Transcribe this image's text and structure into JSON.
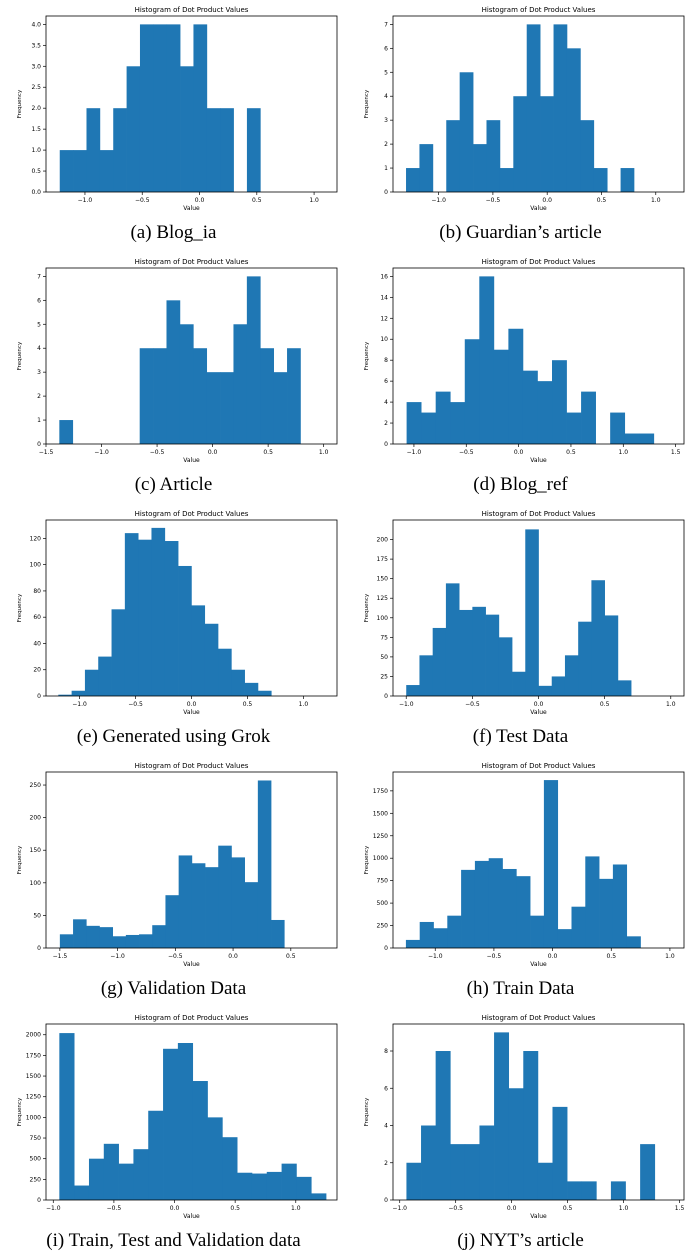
{
  "colors": {
    "bar": "#1f77b4",
    "axis": "#000000"
  },
  "chart_data": [
    {
      "caption": "(a) Blog_ia",
      "type": "bar",
      "title": "Histogram of Dot Product Values",
      "xlabel": "Value",
      "ylabel": "Frequency",
      "xlim": [
        -1.34,
        1.2
      ],
      "ylim": [
        0,
        4.2
      ],
      "xticks": [
        -1.0,
        -0.5,
        0.0,
        0.5,
        1.0
      ],
      "xtick_labels": [
        "−1.0",
        "−0.5",
        "0.0",
        "0.5",
        "1.0"
      ],
      "yticks": [
        0,
        0.5,
        1,
        1.5,
        2,
        2.5,
        3,
        3.5,
        4
      ],
      "ytick_labels": [
        "0.0",
        "0.5",
        "1.0",
        "1.5",
        "2.0",
        "2.5",
        "3.0",
        "3.5",
        "4.0"
      ],
      "bin_start": -1.22,
      "bin_width": 0.1167,
      "counts": [
        1,
        1,
        2,
        1,
        2,
        3,
        4,
        4,
        4,
        3,
        4,
        2,
        2,
        0,
        2
      ]
    },
    {
      "caption": "(b) Guardian’s article",
      "type": "bar",
      "title": "Histogram of Dot Product Values",
      "xlabel": "Value",
      "ylabel": "Frequency",
      "xlim": [
        -1.42,
        1.26
      ],
      "ylim": [
        0,
        7.35
      ],
      "xticks": [
        -1.0,
        -0.5,
        0.0,
        0.5,
        1.0
      ],
      "xtick_labels": [
        "−1.0",
        "−0.5",
        "0.0",
        "0.5",
        "1.0"
      ],
      "yticks": [
        0,
        1,
        2,
        3,
        4,
        5,
        6,
        7
      ],
      "ytick_labels": [
        "0",
        "1",
        "2",
        "3",
        "4",
        "5",
        "6",
        "7"
      ],
      "bin_start": -1.3,
      "bin_width": 0.1235,
      "counts": [
        1,
        2,
        0,
        3,
        5,
        2,
        3,
        1,
        4,
        7,
        4,
        7,
        6,
        3,
        1,
        0,
        1
      ]
    },
    {
      "caption": "(c) Article",
      "type": "bar",
      "title": "Histogram of Dot Product Values",
      "xlabel": "Value",
      "ylabel": "Frequency",
      "xlim": [
        -1.5,
        1.12
      ],
      "ylim": [
        0,
        7.35
      ],
      "xticks": [
        -1.5,
        -1.0,
        -0.5,
        0.0,
        0.5,
        1.0
      ],
      "xtick_labels": [
        "−1.5",
        "−1.0",
        "−0.5",
        "0.0",
        "0.5",
        "1.0"
      ],
      "yticks": [
        0,
        1,
        2,
        3,
        4,
        5,
        6,
        7
      ],
      "ytick_labels": [
        "0",
        "1",
        "2",
        "3",
        "4",
        "5",
        "6",
        "7"
      ],
      "bin_start": -1.38,
      "bin_width": 0.1206,
      "counts": [
        1,
        0,
        0,
        0,
        0,
        0,
        4,
        4,
        6,
        5,
        4,
        3,
        3,
        5,
        7,
        4,
        3,
        4
      ]
    },
    {
      "caption": "(d) Blog_ref",
      "type": "bar",
      "title": "Histogram of Dot Product Values",
      "xlabel": "Value",
      "ylabel": "Frequency",
      "xlim": [
        -1.2,
        1.58
      ],
      "ylim": [
        0,
        16.8
      ],
      "xticks": [
        -1.0,
        -0.5,
        0.0,
        0.5,
        1.0,
        1.5
      ],
      "xtick_labels": [
        "−1.0",
        "−0.5",
        "0.0",
        "0.5",
        "1.0",
        "1.5"
      ],
      "yticks": [
        0,
        2,
        4,
        6,
        8,
        10,
        12,
        14,
        16
      ],
      "ytick_labels": [
        "0",
        "2",
        "4",
        "6",
        "8",
        "10",
        "12",
        "14",
        "16"
      ],
      "bin_start": -1.07,
      "bin_width": 0.1389,
      "counts": [
        4,
        3,
        5,
        4,
        10,
        16,
        9,
        11,
        7,
        6,
        8,
        3,
        5,
        0,
        3,
        1,
        1,
        0
      ]
    },
    {
      "caption": "(e) Generated using Grok",
      "type": "bar",
      "title": "Histogram of Dot Product Values",
      "xlabel": "Value",
      "ylabel": "Frequency",
      "xlim": [
        -1.3,
        1.3
      ],
      "ylim": [
        0,
        134
      ],
      "xticks": [
        -1.0,
        -0.5,
        0.0,
        0.5,
        1.0
      ],
      "xtick_labels": [
        "−1.0",
        "−0.5",
        "0.0",
        "0.5",
        "1.0"
      ],
      "yticks": [
        0,
        20,
        40,
        60,
        80,
        100,
        120
      ],
      "ytick_labels": [
        "0",
        "20",
        "40",
        "60",
        "80",
        "100",
        "120"
      ],
      "bin_start": -1.19,
      "bin_width": 0.1189,
      "counts": [
        1,
        4,
        20,
        30,
        66,
        124,
        119,
        128,
        118,
        99,
        69,
        55,
        36,
        20,
        10,
        4
      ]
    },
    {
      "caption": "(f) Test Data",
      "type": "bar",
      "title": "Histogram of Dot Product Values",
      "xlabel": "Value",
      "ylabel": "Frequency",
      "xlim": [
        -1.1,
        1.1
      ],
      "ylim": [
        0,
        225
      ],
      "xticks": [
        -1.0,
        -0.5,
        0.0,
        0.5,
        1.0
      ],
      "xtick_labels": [
        "−1.0",
        "−0.5",
        "0.0",
        "0.5",
        "1.0"
      ],
      "yticks": [
        0,
        25,
        50,
        75,
        100,
        125,
        150,
        175,
        200
      ],
      "ytick_labels": [
        "0",
        "25",
        "50",
        "75",
        "100",
        "125",
        "150",
        "175",
        "200"
      ],
      "bin_start": -1.0,
      "bin_width": 0.1,
      "counts": [
        14,
        52,
        87,
        144,
        110,
        114,
        104,
        75,
        31,
        213,
        13,
        25,
        52,
        95,
        148,
        103,
        20
      ]
    },
    {
      "caption": "(g) Validation Data",
      "type": "bar",
      "title": "Histogram of Dot Product Values",
      "xlabel": "Value",
      "ylabel": "Frequency",
      "xlim": [
        -1.62,
        0.9
      ],
      "ylim": [
        0,
        270
      ],
      "xticks": [
        -1.5,
        -1.0,
        -0.5,
        0.0,
        0.5
      ],
      "xtick_labels": [
        "−1.5",
        "−1.0",
        "−0.5",
        "0.0",
        "0.5"
      ],
      "yticks": [
        0,
        50,
        100,
        150,
        200,
        250
      ],
      "ytick_labels": [
        "0",
        "50",
        "100",
        "150",
        "200",
        "250"
      ],
      "bin_start": -1.5,
      "bin_width": 0.1143,
      "counts": [
        21,
        44,
        34,
        32,
        18,
        20,
        21,
        35,
        81,
        142,
        130,
        124,
        157,
        139,
        101,
        257,
        43
      ]
    },
    {
      "caption": "(h) Train Data",
      "type": "bar",
      "title": "Histogram of Dot Product Values",
      "xlabel": "Value",
      "ylabel": "Frequency",
      "xlim": [
        -1.36,
        1.12
      ],
      "ylim": [
        0,
        1960
      ],
      "xticks": [
        -1.0,
        -0.5,
        0.0,
        0.5,
        1.0
      ],
      "xtick_labels": [
        "−1.0",
        "−0.5",
        "0.0",
        "0.5",
        "1.0"
      ],
      "yticks": [
        0,
        250,
        500,
        750,
        1000,
        1250,
        1500,
        1750
      ],
      "ytick_labels": [
        "0",
        "250",
        "500",
        "750",
        "1000",
        "1250",
        "1500",
        "1750"
      ],
      "bin_start": -1.25,
      "bin_width": 0.1176,
      "counts": [
        90,
        290,
        220,
        360,
        870,
        970,
        1000,
        880,
        800,
        360,
        1870,
        210,
        460,
        1020,
        770,
        930,
        130
      ]
    },
    {
      "caption": "(i) Train, Test and Validation data",
      "type": "bar",
      "title": "Histogram of Dot Product Values",
      "xlabel": "Value",
      "ylabel": "Frequency",
      "xlim": [
        -1.06,
        1.34
      ],
      "ylim": [
        0,
        2130
      ],
      "xticks": [
        -1.0,
        -0.5,
        0.0,
        0.5,
        1.0
      ],
      "xtick_labels": [
        "−1.0",
        "−0.5",
        "0.0",
        "0.5",
        "1.0"
      ],
      "yticks": [
        0,
        250,
        500,
        750,
        1000,
        1250,
        1500,
        1750,
        2000
      ],
      "ytick_labels": [
        "0",
        "250",
        "500",
        "750",
        "1000",
        "1250",
        "1500",
        "1750",
        "2000"
      ],
      "bin_start": -0.95,
      "bin_width": 0.1222,
      "counts": [
        2020,
        175,
        500,
        680,
        440,
        615,
        1080,
        1830,
        1900,
        1440,
        1000,
        760,
        330,
        320,
        340,
        440,
        280,
        80
      ]
    },
    {
      "caption": "(j) NYT’s article",
      "type": "bar",
      "title": "Histogram of Dot Product Values",
      "xlabel": "Value",
      "ylabel": "Frequency",
      "xlim": [
        -1.06,
        1.54
      ],
      "ylim": [
        0,
        9.45
      ],
      "xticks": [
        -1.0,
        -0.5,
        0.0,
        0.5,
        1.0,
        1.5
      ],
      "xtick_labels": [
        "−1.0",
        "−0.5",
        "0.0",
        "0.5",
        "1.0",
        "1.5"
      ],
      "yticks": [
        0,
        2,
        4,
        6,
        8
      ],
      "ytick_labels": [
        "0",
        "2",
        "4",
        "6",
        "8"
      ],
      "bin_start": -0.94,
      "bin_width": 0.1305,
      "counts": [
        2,
        4,
        8,
        3,
        3,
        4,
        9,
        6,
        8,
        2,
        5,
        1,
        1,
        0,
        1,
        0,
        3
      ]
    }
  ]
}
